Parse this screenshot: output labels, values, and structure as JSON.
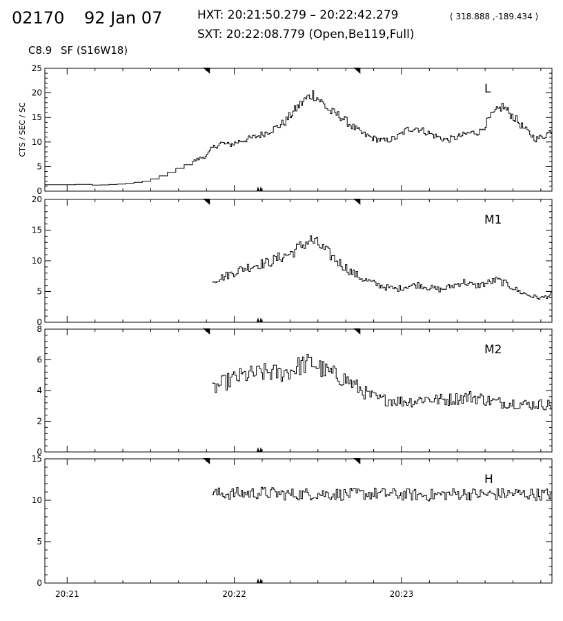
{
  "header": {
    "id": "02170",
    "date": "92 Jan 07",
    "hxt": "HXT: 20:21:50.279 – 20:22:42.279",
    "coords": "( 318.888 ,-189.434 )",
    "sxt": "SXT: 20:22:08.779 (Open,Be119,Full)",
    "goes_class": "C8.9",
    "sf": "SF (S16W18)"
  },
  "chart_data": {
    "type": "line",
    "ylabel": "CTS / SEC / SC",
    "x_unit": "seconds after 20:21:00",
    "xlim": [
      -8,
      174
    ],
    "x_ticks": [
      0,
      60,
      120
    ],
    "x_tick_labels": [
      "20:21",
      "20:22",
      "20:23"
    ],
    "markers": {
      "top_triangles": [
        50,
        104
      ],
      "bottom_markers": [
        69
      ]
    },
    "panels": [
      {
        "name": "L",
        "ylim": [
          0,
          25
        ],
        "yticks": [
          0,
          5,
          10,
          15,
          20,
          25
        ],
        "series": [
          {
            "x": -8,
            "y": 1.3
          },
          {
            "x": 0,
            "y": 1.3
          },
          {
            "x": 5,
            "y": 1.4
          },
          {
            "x": 10,
            "y": 1.2
          },
          {
            "x": 20,
            "y": 1.5
          },
          {
            "x": 28,
            "y": 2.1
          },
          {
            "x": 34,
            "y": 3.3
          },
          {
            "x": 40,
            "y": 4.9
          },
          {
            "x": 46,
            "y": 6.3
          },
          {
            "x": 50,
            "y": 7.3
          },
          {
            "x": 52,
            "y": 8.8
          },
          {
            "x": 55,
            "y": 9.8
          },
          {
            "x": 58,
            "y": 9.4
          },
          {
            "x": 62,
            "y": 10.2
          },
          {
            "x": 66,
            "y": 10.8
          },
          {
            "x": 70,
            "y": 11.6
          },
          {
            "x": 74,
            "y": 12.7
          },
          {
            "x": 78,
            "y": 14.1
          },
          {
            "x": 82,
            "y": 16.8
          },
          {
            "x": 85,
            "y": 18.5
          },
          {
            "x": 88,
            "y": 19.8
          },
          {
            "x": 91,
            "y": 18.2
          },
          {
            "x": 94,
            "y": 16.3
          },
          {
            "x": 98,
            "y": 15.2
          },
          {
            "x": 102,
            "y": 13.2
          },
          {
            "x": 106,
            "y": 11.6
          },
          {
            "x": 110,
            "y": 10.7
          },
          {
            "x": 114,
            "y": 10.2
          },
          {
            "x": 118,
            "y": 10.9
          },
          {
            "x": 122,
            "y": 12.6
          },
          {
            "x": 125,
            "y": 12.9
          },
          {
            "x": 128,
            "y": 12.2
          },
          {
            "x": 132,
            "y": 11.2
          },
          {
            "x": 136,
            "y": 10.4
          },
          {
            "x": 140,
            "y": 11.0
          },
          {
            "x": 144,
            "y": 11.8
          },
          {
            "x": 148,
            "y": 12.1
          },
          {
            "x": 152,
            "y": 15.2
          },
          {
            "x": 156,
            "y": 17.3
          },
          {
            "x": 160,
            "y": 15.1
          },
          {
            "x": 164,
            "y": 12.6
          },
          {
            "x": 168,
            "y": 10.6
          },
          {
            "x": 171,
            "y": 11.2
          },
          {
            "x": 174,
            "y": 12.6
          }
        ]
      },
      {
        "name": "M1",
        "ylim": [
          0,
          20
        ],
        "yticks": [
          0,
          5,
          10,
          15,
          20
        ],
        "series": [
          {
            "x": 52,
            "y": 6.8
          },
          {
            "x": 56,
            "y": 7.4
          },
          {
            "x": 60,
            "y": 8.2
          },
          {
            "x": 64,
            "y": 8.9
          },
          {
            "x": 68,
            "y": 9.4
          },
          {
            "x": 72,
            "y": 9.7
          },
          {
            "x": 76,
            "y": 10.5
          },
          {
            "x": 80,
            "y": 11.2
          },
          {
            "x": 84,
            "y": 12.5
          },
          {
            "x": 87,
            "y": 13.4
          },
          {
            "x": 90,
            "y": 12.6
          },
          {
            "x": 94,
            "y": 11.0
          },
          {
            "x": 98,
            "y": 9.5
          },
          {
            "x": 102,
            "y": 8.1
          },
          {
            "x": 106,
            "y": 7.0
          },
          {
            "x": 110,
            "y": 6.3
          },
          {
            "x": 114,
            "y": 5.7
          },
          {
            "x": 118,
            "y": 5.4
          },
          {
            "x": 122,
            "y": 5.9
          },
          {
            "x": 126,
            "y": 6.1
          },
          {
            "x": 130,
            "y": 5.6
          },
          {
            "x": 134,
            "y": 5.3
          },
          {
            "x": 138,
            "y": 5.9
          },
          {
            "x": 142,
            "y": 6.6
          },
          {
            "x": 146,
            "y": 5.9
          },
          {
            "x": 150,
            "y": 6.3
          },
          {
            "x": 154,
            "y": 6.9
          },
          {
            "x": 158,
            "y": 6.1
          },
          {
            "x": 162,
            "y": 5.0
          },
          {
            "x": 166,
            "y": 4.3
          },
          {
            "x": 170,
            "y": 3.9
          },
          {
            "x": 174,
            "y": 4.6
          }
        ]
      },
      {
        "name": "M2",
        "ylim": [
          0,
          8
        ],
        "yticks": [
          0,
          2,
          4,
          6,
          8
        ],
        "series": [
          {
            "x": 52,
            "y": 4.1
          },
          {
            "x": 56,
            "y": 4.5
          },
          {
            "x": 60,
            "y": 4.8
          },
          {
            "x": 64,
            "y": 5.0
          },
          {
            "x": 68,
            "y": 5.1
          },
          {
            "x": 72,
            "y": 5.2
          },
          {
            "x": 76,
            "y": 5.1
          },
          {
            "x": 80,
            "y": 5.3
          },
          {
            "x": 84,
            "y": 5.7
          },
          {
            "x": 88,
            "y": 5.8
          },
          {
            "x": 92,
            "y": 5.3
          },
          {
            "x": 96,
            "y": 5.0
          },
          {
            "x": 100,
            "y": 4.7
          },
          {
            "x": 104,
            "y": 4.2
          },
          {
            "x": 108,
            "y": 3.7
          },
          {
            "x": 112,
            "y": 3.4
          },
          {
            "x": 116,
            "y": 3.4
          },
          {
            "x": 120,
            "y": 3.3
          },
          {
            "x": 124,
            "y": 3.3
          },
          {
            "x": 128,
            "y": 3.5
          },
          {
            "x": 132,
            "y": 3.4
          },
          {
            "x": 136,
            "y": 3.4
          },
          {
            "x": 140,
            "y": 3.5
          },
          {
            "x": 144,
            "y": 3.6
          },
          {
            "x": 148,
            "y": 3.5
          },
          {
            "x": 152,
            "y": 3.3
          },
          {
            "x": 156,
            "y": 3.2
          },
          {
            "x": 160,
            "y": 3.2
          },
          {
            "x": 164,
            "y": 3.1
          },
          {
            "x": 168,
            "y": 3.1
          },
          {
            "x": 172,
            "y": 3.1
          },
          {
            "x": 174,
            "y": 3.0
          }
        ]
      },
      {
        "name": "H",
        "ylim": [
          0,
          15
        ],
        "yticks": [
          0,
          5,
          10,
          15
        ],
        "series": [
          {
            "x": 52,
            "y": 10.8
          },
          {
            "x": 60,
            "y": 10.8
          },
          {
            "x": 70,
            "y": 10.9
          },
          {
            "x": 80,
            "y": 10.7
          },
          {
            "x": 90,
            "y": 10.8
          },
          {
            "x": 100,
            "y": 10.7
          },
          {
            "x": 110,
            "y": 10.8
          },
          {
            "x": 120,
            "y": 10.7
          },
          {
            "x": 130,
            "y": 10.6
          },
          {
            "x": 140,
            "y": 10.8
          },
          {
            "x": 150,
            "y": 10.7
          },
          {
            "x": 160,
            "y": 10.8
          },
          {
            "x": 170,
            "y": 10.7
          },
          {
            "x": 174,
            "y": 10.8
          }
        ]
      }
    ]
  }
}
